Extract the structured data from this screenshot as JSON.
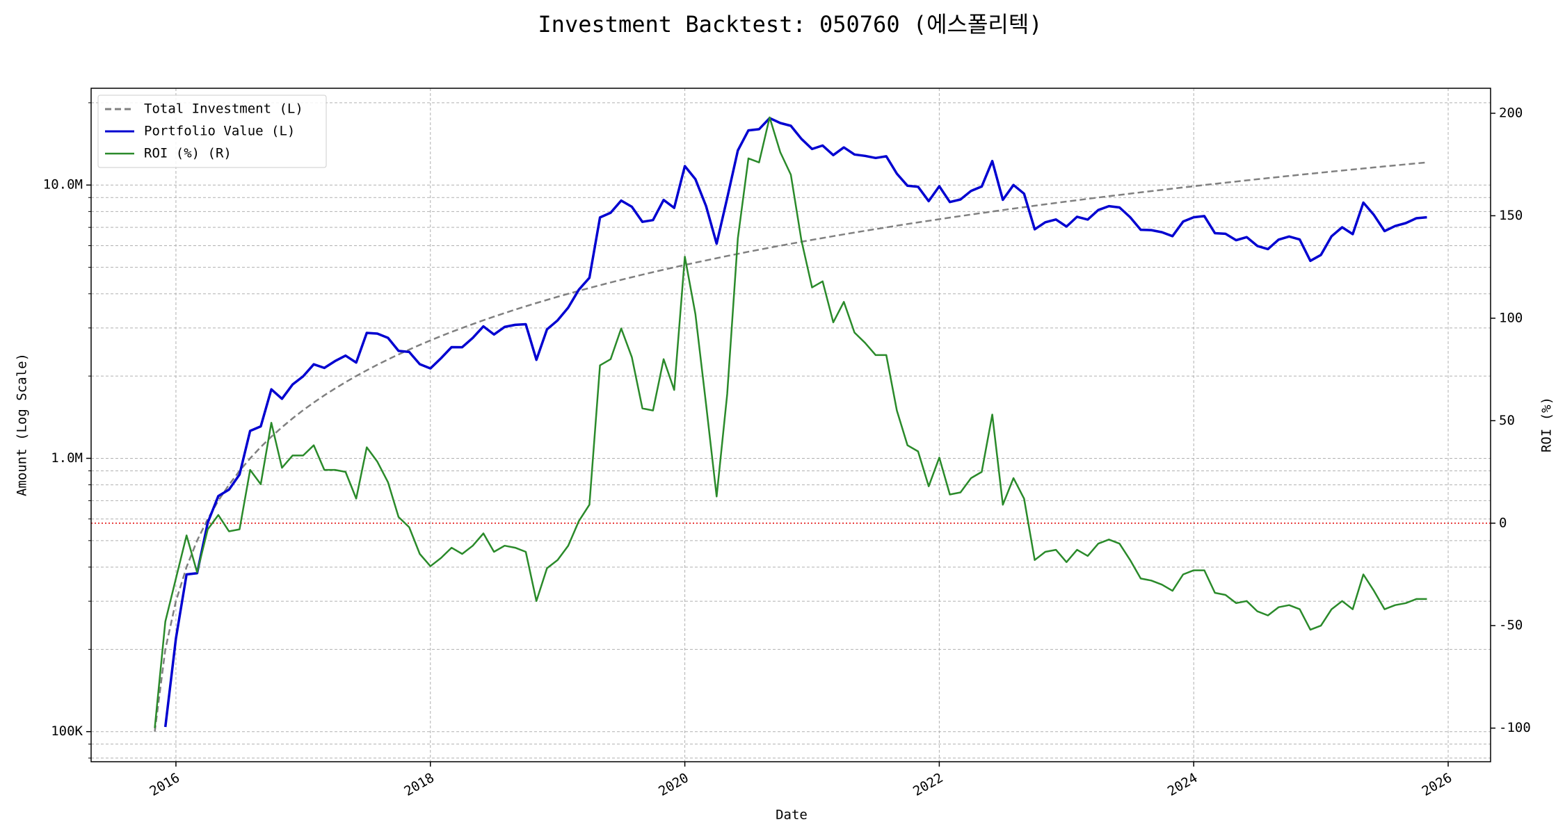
{
  "chart_data": {
    "type": "line",
    "title": "Investment Backtest: 050760 (에스폴리텍)",
    "xlabel": "Date",
    "ylabel": "Amount (Log Scale)",
    "y2label": "ROI (%)",
    "x": [
      "2015-11",
      "2015-12",
      "2016-01",
      "2016-02",
      "2016-03",
      "2016-04",
      "2016-05",
      "2016-06",
      "2016-07",
      "2016-08",
      "2016-09",
      "2016-10",
      "2016-11",
      "2016-12",
      "2017-01",
      "2017-02",
      "2017-03",
      "2017-04",
      "2017-05",
      "2017-06",
      "2017-07",
      "2017-08",
      "2017-09",
      "2017-10",
      "2017-11",
      "2017-12",
      "2018-01",
      "2018-02",
      "2018-03",
      "2018-04",
      "2018-05",
      "2018-06",
      "2018-07",
      "2018-08",
      "2018-09",
      "2018-10",
      "2018-11",
      "2018-12",
      "2019-01",
      "2019-02",
      "2019-03",
      "2019-04",
      "2019-05",
      "2019-06",
      "2019-07",
      "2019-08",
      "2019-09",
      "2019-10",
      "2019-11",
      "2019-12",
      "2020-01",
      "2020-02",
      "2020-03",
      "2020-04",
      "2020-05",
      "2020-06",
      "2020-07",
      "2020-08",
      "2020-09",
      "2020-10",
      "2020-11",
      "2020-12",
      "2021-01",
      "2021-02",
      "2021-03",
      "2021-04",
      "2021-05",
      "2021-06",
      "2021-07",
      "2021-08",
      "2021-09",
      "2021-10",
      "2021-11",
      "2021-12",
      "2022-01",
      "2022-02",
      "2022-03",
      "2022-04",
      "2022-05",
      "2022-06",
      "2022-07",
      "2022-08",
      "2022-09",
      "2022-10",
      "2022-11",
      "2022-12",
      "2023-01",
      "2023-02",
      "2023-03",
      "2023-04",
      "2023-05",
      "2023-06",
      "2023-07",
      "2023-08",
      "2023-09",
      "2023-10",
      "2023-11",
      "2023-12",
      "2024-01",
      "2024-02",
      "2024-03",
      "2024-04",
      "2024-05",
      "2024-06",
      "2024-07",
      "2024-08",
      "2024-09",
      "2024-10",
      "2024-11",
      "2024-12",
      "2025-01",
      "2025-02",
      "2025-03",
      "2025-04",
      "2025-05",
      "2025-06",
      "2025-07",
      "2025-08",
      "2025-09",
      "2025-10",
      "2025-11"
    ],
    "series": [
      {
        "name": "Total Investment (L)",
        "color": "#808080",
        "dash": true,
        "axis": "y",
        "values": [
          100000,
          200000,
          300000,
          400000,
          500000,
          600000,
          700000,
          800000,
          900000,
          1000000,
          1100000,
          1200000,
          1300000,
          1400000,
          1500000,
          1600000,
          1700000,
          1800000,
          1900000,
          2000000,
          2100000,
          2200000,
          2300000,
          2400000,
          2500000,
          2600000,
          2700000,
          2800000,
          2900000,
          3000000,
          3100000,
          3200000,
          3300000,
          3400000,
          3500000,
          3600000,
          3700000,
          3800000,
          3900000,
          4000000,
          4100000,
          4200000,
          4300000,
          4400000,
          4500000,
          4600000,
          4700000,
          4800000,
          4900000,
          5000000,
          5100000,
          5200000,
          5300000,
          5400000,
          5500000,
          5600000,
          5700000,
          5800000,
          5900000,
          6000000,
          6100000,
          6200000,
          6300000,
          6400000,
          6500000,
          6600000,
          6700000,
          6800000,
          6900000,
          7000000,
          7100000,
          7200000,
          7300000,
          7400000,
          7500000,
          7600000,
          7700000,
          7800000,
          7900000,
          8000000,
          8100000,
          8200000,
          8300000,
          8400000,
          8500000,
          8600000,
          8700000,
          8800000,
          8900000,
          9000000,
          9100000,
          9200000,
          9300000,
          9400000,
          9500000,
          9600000,
          9700000,
          9800000,
          9900000,
          10000000,
          10100000,
          10200000,
          10300000,
          10400000,
          10500000,
          10600000,
          10700000,
          10800000,
          10900000,
          11000000,
          11100000,
          11200000,
          11300000,
          11400000,
          11500000,
          11600000,
          11700000,
          11800000,
          11900000,
          12000000,
          12100000
        ]
      },
      {
        "name": "Portfolio Value (L)",
        "color": "#0000d0",
        "dash": false,
        "axis": "y",
        "values": [
          null,
          104000,
          219000,
          376000,
          380000,
          582000,
          728000,
          768000,
          873000,
          1260000,
          1309000,
          1788000,
          1651000,
          1862000,
          1995000,
          2208000,
          2142000,
          2268000,
          2375000,
          2240000,
          2877000,
          2860000,
          2760000,
          2472000,
          2450000,
          2210000,
          2133000,
          2324000,
          2552000,
          2550000,
          2759000,
          3040000,
          2838000,
          3026000,
          3080000,
          3096000,
          2294000,
          2964000,
          3198000,
          3560000,
          4141000,
          4578000,
          7611000,
          7920000,
          8775000,
          8326000,
          7332000,
          7440000,
          8820000,
          8250000,
          11730000,
          10504000,
          8374000,
          6102000,
          8965000,
          13384000,
          15846000,
          16008000,
          17582000,
          16860000,
          16470000,
          14756000,
          13545000,
          13952000,
          12870000,
          13728000,
          12931000,
          12784000,
          12558000,
          12740000,
          11005000,
          9936000,
          9855000,
          8732000,
          9900000,
          8664000,
          8855000,
          9516000,
          9875000,
          12240000,
          8829000,
          10004000,
          9296000,
          6888000,
          7310000,
          7482000,
          7047000,
          7656000,
          7476000,
          8100000,
          8372000,
          8280000,
          7626000,
          6862000,
          6840000,
          6720000,
          6499000,
          7350000,
          7623000,
          7700000,
          6666000,
          6630000,
          6283000,
          6448000,
          5985000,
          5830000,
          6313000,
          6480000,
          6322000,
          5280000,
          5550000,
          6496000,
          7006000,
          6612000,
          8625000,
          7772000,
          6786000,
          7080000,
          7259000,
          7560000,
          7623000
        ]
      },
      {
        "name": "ROI (%) (R)",
        "color": "#2a8a2a",
        "dash": false,
        "axis": "y2",
        "values": [
          -100,
          -48,
          -27,
          -6,
          -24,
          -3,
          4,
          -4,
          -3,
          26,
          19,
          49,
          27,
          33,
          33,
          38,
          26,
          26,
          25,
          12,
          37,
          30,
          20,
          3,
          -2,
          -15,
          -21,
          -17,
          -12,
          -15,
          -11,
          -5,
          -14,
          -11,
          -12,
          -14,
          -38,
          -22,
          -18,
          -11,
          1,
          9,
          77,
          80,
          95,
          81,
          56,
          55,
          80,
          65,
          130,
          102,
          58,
          13,
          63,
          139,
          178,
          176,
          198,
          181,
          170,
          138,
          115,
          118,
          98,
          108,
          93,
          88,
          82,
          82,
          55,
          38,
          35,
          18,
          32,
          14,
          15,
          22,
          25,
          53,
          9,
          22,
          12,
          -18,
          -14,
          -13,
          -19,
          -13,
          -16,
          -10,
          -8,
          -10,
          -18,
          -27,
          -28,
          -30,
          -33,
          -25,
          -23,
          -23,
          -34,
          -35,
          -39,
          -38,
          -43,
          -45,
          -41,
          -40,
          -42,
          -52,
          -50,
          -42,
          -38,
          -42,
          -25,
          -33,
          -42,
          -40,
          -39,
          -37,
          -37
        ]
      }
    ],
    "xlim": [
      "2015-05",
      "2026-05"
    ],
    "xticks": [
      "2016",
      "2018",
      "2020",
      "2022",
      "2024",
      "2026"
    ],
    "ylog": true,
    "ylim": [
      77600,
      22600000
    ],
    "yticks": [
      {
        "value": 100000,
        "label": "100K"
      },
      {
        "value": 1000000,
        "label": "1.0M"
      },
      {
        "value": 10000000,
        "label": "10.0M"
      }
    ],
    "yminorticks": [
      80000,
      90000,
      200000,
      300000,
      400000,
      500000,
      600000,
      700000,
      800000,
      900000,
      2000000,
      3000000,
      4000000,
      5000000,
      6000000,
      7000000,
      8000000,
      9000000,
      20000000
    ],
    "ycolor": "#0000d0",
    "y2lim": [
      -116.4,
      212.2
    ],
    "y2ticks": [
      -100,
      -50,
      0,
      50,
      100,
      150,
      200
    ],
    "y2color": "#2a8a2a",
    "reference_line": {
      "value": 0,
      "axis": "y2",
      "color": "#e00000"
    },
    "grid": true,
    "legend": "upper left"
  }
}
